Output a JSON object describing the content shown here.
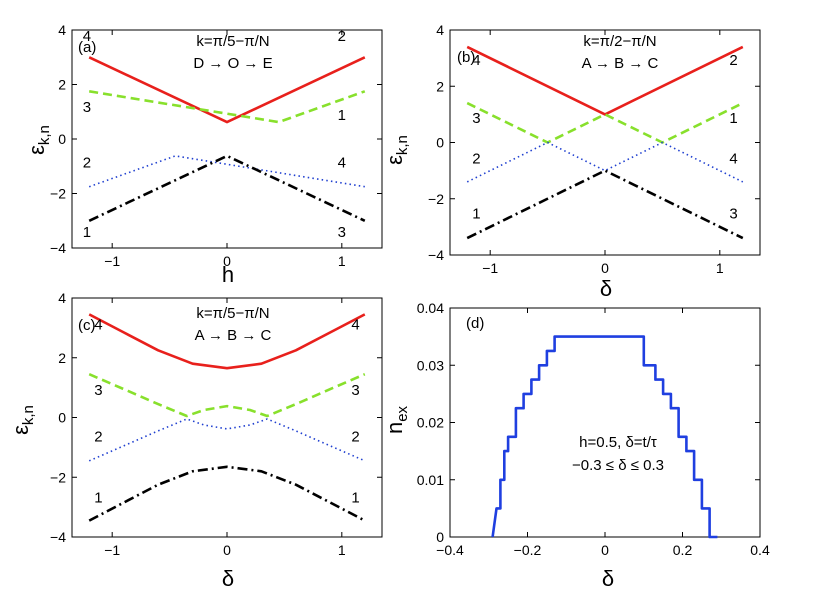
{
  "chart_data": [
    {
      "type": "line",
      "panel_label": "(a)",
      "title": "k=π/5−π/N",
      "subtitle": "D → O → E",
      "xlabel": "h",
      "ylabel": "εk,n",
      "ylabel_main": "ε",
      "ylabel_sub": "k,n",
      "xlim": [
        -1.35,
        1.35
      ],
      "ylim": [
        -4,
        4
      ],
      "xticks": [
        -1,
        0,
        1
      ],
      "xticklabels": [
        "−1",
        "0",
        "1"
      ],
      "yticks": [
        -4,
        -2,
        0,
        2,
        4
      ],
      "yticklabels": [
        "−4",
        "−2",
        "0",
        "2",
        "4"
      ],
      "series": [
        {
          "name": "n=4 to 2",
          "style": "solid",
          "color": "#e8201c",
          "x": [
            -1.2,
            0,
            1.2
          ],
          "y": [
            3.0,
            0.62,
            3.0
          ]
        },
        {
          "name": "n=3 to 1",
          "style": "dashed",
          "color": "#88e02c",
          "x": [
            -1.2,
            0.45,
            1.2
          ],
          "y": [
            1.75,
            0.62,
            1.75
          ]
        },
        {
          "name": "n=2 to 4",
          "style": "dotted",
          "color": "#2040d0",
          "x": [
            -1.2,
            -0.45,
            1.2
          ],
          "y": [
            -1.75,
            -0.62,
            -1.75
          ]
        },
        {
          "name": "n=1 to 3",
          "style": "dashdot",
          "color": "#000000",
          "x": [
            -1.2,
            0,
            1.2
          ],
          "y": [
            -3.0,
            -0.62,
            -3.0
          ]
        }
      ],
      "annotations": [
        {
          "text": "4",
          "x": -1.22,
          "y": 3.6
        },
        {
          "text": "3",
          "x": -1.22,
          "y": 1.0
        },
        {
          "text": "2",
          "x": -1.22,
          "y": -1.05
        },
        {
          "text": "1",
          "x": -1.22,
          "y": -3.6
        },
        {
          "text": "2",
          "x": 1.0,
          "y": 3.6
        },
        {
          "text": "1",
          "x": 1.0,
          "y": 0.7
        },
        {
          "text": "4",
          "x": 1.0,
          "y": -1.05
        },
        {
          "text": "3",
          "x": 1.0,
          "y": -3.6
        }
      ]
    },
    {
      "type": "line",
      "panel_label": "(b)",
      "title": "k=π/2−π/N",
      "subtitle": "A → B → C",
      "xlabel": "δ",
      "ylabel": "εk,n",
      "ylabel_main": "ε",
      "ylabel_sub": "k,n",
      "xlim": [
        -1.35,
        1.35
      ],
      "ylim": [
        -4,
        4
      ],
      "xticks": [
        -1,
        0,
        1
      ],
      "xticklabels": [
        "−1",
        "0",
        "1"
      ],
      "yticks": [
        -4,
        -2,
        0,
        2,
        4
      ],
      "yticklabels": [
        "−4",
        "−2",
        "0",
        "2",
        "4"
      ],
      "series": [
        {
          "name": "n=4 to 2",
          "style": "solid",
          "color": "#e8201c",
          "x": [
            -1.2,
            0,
            1.2
          ],
          "y": [
            3.4,
            1.0,
            3.4
          ]
        },
        {
          "name": "n=3 to 1",
          "style": "dashed",
          "color": "#88e02c",
          "x": [
            -1.2,
            -0.5,
            0,
            0.5,
            1.2
          ],
          "y": [
            1.4,
            0.0,
            1.0,
            0.0,
            1.4
          ]
        },
        {
          "name": "n=2 to 4",
          "style": "dotted",
          "color": "#2040d0",
          "x": [
            -1.2,
            -0.5,
            0,
            0.5,
            1.2
          ],
          "y": [
            -1.4,
            0.0,
            -1.0,
            0.0,
            -1.4
          ]
        },
        {
          "name": "n=1 to 3",
          "style": "dashdot",
          "color": "#000000",
          "x": [
            -1.2,
            0,
            1.2
          ],
          "y": [
            -3.4,
            -1.0,
            -3.4
          ]
        }
      ],
      "annotations": [
        {
          "text": "4",
          "x": -1.12,
          "y": 2.75
        },
        {
          "text": "3",
          "x": -1.12,
          "y": 0.7
        },
        {
          "text": "2",
          "x": -1.12,
          "y": -0.75
        },
        {
          "text": "1",
          "x": -1.12,
          "y": -2.7
        },
        {
          "text": "2",
          "x": 1.12,
          "y": 2.75
        },
        {
          "text": "1",
          "x": 1.12,
          "y": 0.7
        },
        {
          "text": "4",
          "x": 1.12,
          "y": -0.75
        },
        {
          "text": "3",
          "x": 1.12,
          "y": -2.7
        }
      ]
    },
    {
      "type": "line",
      "panel_label": "(c)",
      "title": "k=π/5−π/N",
      "subtitle": "A → B → C",
      "xlabel": "δ",
      "ylabel": "εk,n",
      "ylabel_main": "ε",
      "ylabel_sub": "k,n",
      "xlim": [
        -1.35,
        1.35
      ],
      "ylim": [
        -4,
        4
      ],
      "xticks": [
        -1,
        0,
        1
      ],
      "xticklabels": [
        "−1",
        "0",
        "1"
      ],
      "yticks": [
        -4,
        -2,
        0,
        2,
        4
      ],
      "yticklabels": [
        "−4",
        "−2",
        "0",
        "2",
        "4"
      ],
      "series": [
        {
          "name": "n=4",
          "style": "solid",
          "color": "#e8201c",
          "x": [
            -1.2,
            -0.9,
            -0.6,
            -0.3,
            0,
            0.3,
            0.6,
            0.9,
            1.2
          ],
          "y": [
            3.45,
            2.85,
            2.25,
            1.8,
            1.65,
            1.8,
            2.25,
            2.85,
            3.45
          ]
        },
        {
          "name": "n=3",
          "style": "dashed",
          "color": "#88e02c",
          "x": [
            -1.2,
            -0.9,
            -0.6,
            -0.35,
            -0.2,
            0,
            0.2,
            0.35,
            0.6,
            0.9,
            1.2
          ],
          "y": [
            1.45,
            0.95,
            0.45,
            0.05,
            0.25,
            0.38,
            0.25,
            0.05,
            0.45,
            0.95,
            1.45
          ]
        },
        {
          "name": "n=2",
          "style": "dotted",
          "color": "#2040d0",
          "x": [
            -1.2,
            -0.9,
            -0.6,
            -0.35,
            -0.2,
            0,
            0.2,
            0.35,
            0.6,
            0.9,
            1.2
          ],
          "y": [
            -1.45,
            -0.95,
            -0.45,
            -0.05,
            -0.25,
            -0.38,
            -0.25,
            -0.05,
            -0.45,
            -0.95,
            -1.45
          ]
        },
        {
          "name": "n=1",
          "style": "dashdot",
          "color": "#000000",
          "x": [
            -1.2,
            -0.9,
            -0.6,
            -0.3,
            0,
            0.3,
            0.6,
            0.9,
            1.2
          ],
          "y": [
            -3.45,
            -2.85,
            -2.25,
            -1.8,
            -1.65,
            -1.8,
            -2.25,
            -2.85,
            -3.45
          ]
        }
      ],
      "annotations": [
        {
          "text": "4",
          "x": -1.12,
          "y": 2.95
        },
        {
          "text": "3",
          "x": -1.12,
          "y": 0.75
        },
        {
          "text": "2",
          "x": -1.12,
          "y": -0.8
        },
        {
          "text": "1",
          "x": -1.12,
          "y": -2.85
        },
        {
          "text": "4",
          "x": 1.12,
          "y": 2.95
        },
        {
          "text": "3",
          "x": 1.12,
          "y": 0.75
        },
        {
          "text": "2",
          "x": 1.12,
          "y": -0.8
        },
        {
          "text": "1",
          "x": 1.12,
          "y": -2.85
        }
      ]
    },
    {
      "type": "line",
      "panel_label": "(d)",
      "title": "h=0.5, δ=t/τ",
      "subtitle": "−0.3 ≤ δ ≤ 0.3",
      "xlabel": "δ",
      "ylabel": "nex",
      "ylabel_main": "n",
      "ylabel_sub": "ex",
      "xlim": [
        -0.4,
        0.4
      ],
      "ylim": [
        0,
        0.04
      ],
      "xticks": [
        -0.4,
        -0.2,
        0,
        0.2,
        0.4
      ],
      "xticklabels": [
        "−0.4",
        "−0.2",
        "0",
        "0.2",
        "0.4"
      ],
      "yticks": [
        0,
        0.01,
        0.02,
        0.03,
        0.04
      ],
      "yticklabels": [
        "0",
        "0.01",
        "0.02",
        "0.03",
        "0.04"
      ],
      "series": [
        {
          "name": "nex",
          "style": "solid",
          "color": "#1f3fe0",
          "x": [
            -0.29,
            -0.28,
            -0.28,
            -0.27,
            -0.27,
            -0.26,
            -0.26,
            -0.25,
            -0.25,
            -0.23,
            -0.23,
            -0.21,
            -0.21,
            -0.19,
            -0.19,
            -0.17,
            -0.17,
            -0.15,
            -0.15,
            -0.13,
            -0.13,
            -0.1,
            -0.1,
            0.1,
            0.1,
            0.13,
            0.13,
            0.15,
            0.15,
            0.17,
            0.17,
            0.19,
            0.19,
            0.21,
            0.21,
            0.23,
            0.23,
            0.25,
            0.25,
            0.26,
            0.26,
            0.27,
            0.27,
            0.28,
            0.28,
            0.29
          ],
          "y": [
            0,
            0.005,
            0.005,
            0.005,
            0.01,
            0.01,
            0.015,
            0.015,
            0.0175,
            0.0175,
            0.0225,
            0.0225,
            0.025,
            0.025,
            0.0275,
            0.0275,
            0.03,
            0.03,
            0.0325,
            0.0325,
            0.035,
            0.035,
            0.035,
            0.035,
            0.03,
            0.03,
            0.0275,
            0.0275,
            0.025,
            0.025,
            0.0225,
            0.0225,
            0.0175,
            0.0175,
            0.015,
            0.015,
            0.01,
            0.01,
            0.005,
            0.005,
            0.005,
            0.005,
            0.0,
            0.0,
            0.0,
            0.0
          ]
        }
      ],
      "annotations": []
    }
  ]
}
